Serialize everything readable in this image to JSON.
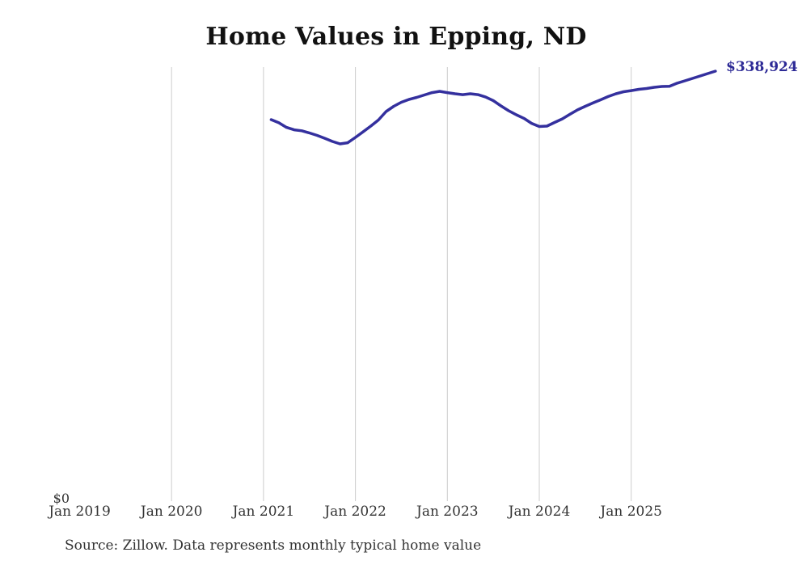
{
  "title": "Home Values in Epping, ND",
  "source": "Source: Zillow. Data represents monthly typical home value",
  "end_label": "$338,924",
  "y_axis": {
    "zero_label": "$0"
  },
  "colors": {
    "line": "#34309e",
    "end_label": "#2d2a96",
    "gridline": "#cccccc",
    "title": "#111111",
    "axis_text": "#333333"
  },
  "chart_data": {
    "type": "line",
    "title": "Home Values in Epping, ND",
    "xlabel": "",
    "ylabel": "",
    "ylim": [
      0,
      342000
    ],
    "grid": "vertical-only",
    "legend": "none",
    "annotation": "$338,924",
    "x_ticks": [
      {
        "label": "Jan 2019",
        "month": 0,
        "gridline": false
      },
      {
        "label": "Jan 2020",
        "month": 12,
        "gridline": true
      },
      {
        "label": "Jan 2021",
        "month": 24,
        "gridline": true
      },
      {
        "label": "Jan 2022",
        "month": 36,
        "gridline": true
      },
      {
        "label": "Jan 2023",
        "month": 48,
        "gridline": true
      },
      {
        "label": "Jan 2024",
        "month": 60,
        "gridline": true
      },
      {
        "label": "Jan 2025",
        "month": 72,
        "gridline": true
      }
    ],
    "x": [
      "2021-02",
      "2021-03",
      "2021-04",
      "2021-05",
      "2021-06",
      "2021-07",
      "2021-08",
      "2021-09",
      "2021-10",
      "2021-11",
      "2021-12",
      "2022-01",
      "2022-02",
      "2022-03",
      "2022-04",
      "2022-05",
      "2022-06",
      "2022-07",
      "2022-08",
      "2022-09",
      "2022-10",
      "2022-11",
      "2022-12",
      "2023-01",
      "2023-02",
      "2023-03",
      "2023-04",
      "2023-05",
      "2023-06",
      "2023-07",
      "2023-08",
      "2023-09",
      "2023-10",
      "2023-11",
      "2023-12",
      "2024-01",
      "2024-02",
      "2024-03",
      "2024-04",
      "2024-05",
      "2024-06",
      "2024-07",
      "2024-08",
      "2024-09",
      "2024-10",
      "2024-11",
      "2024-12",
      "2025-01",
      "2025-02",
      "2025-03",
      "2025-04",
      "2025-05",
      "2025-06",
      "2025-07",
      "2025-08",
      "2025-09",
      "2025-10",
      "2025-11",
      "2025-12"
    ],
    "series": [
      {
        "name": "Typical home value",
        "values": [
          300700,
          298200,
          294600,
          292700,
          291900,
          290200,
          288300,
          286000,
          283500,
          281600,
          282500,
          286700,
          291100,
          295600,
          300400,
          307100,
          311200,
          314400,
          316600,
          318200,
          320100,
          322000,
          323000,
          322000,
          321100,
          320400,
          321100,
          320400,
          318500,
          315700,
          311500,
          307700,
          304500,
          301700,
          297800,
          295300,
          295600,
          298500,
          301300,
          304900,
          308400,
          311200,
          313800,
          316300,
          318900,
          321100,
          322700,
          323600,
          324600,
          325200,
          326200,
          326800,
          327000,
          329400,
          331300,
          333200,
          335100,
          337000,
          338924
        ]
      }
    ]
  }
}
